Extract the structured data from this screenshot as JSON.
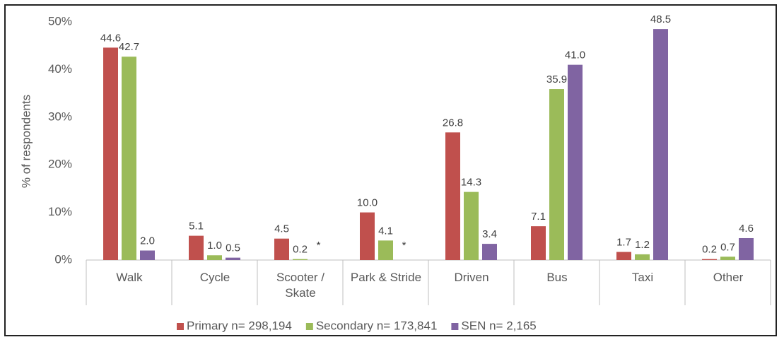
{
  "chart_data": {
    "type": "bar",
    "y_label": "% of respondents",
    "categories": [
      "Walk",
      "Cycle",
      "Scooter / Skate",
      "Park & Stride",
      "Driven",
      "Bus",
      "Taxi",
      "Other"
    ],
    "series": [
      {
        "name": "Primary n= 298,194",
        "color": "#c0504d",
        "values": [
          44.6,
          5.1,
          4.5,
          10.0,
          26.8,
          7.1,
          1.7,
          0.2
        ],
        "value_labels": [
          "44.6",
          "5.1",
          "4.5",
          "10.0",
          "26.8",
          "7.1",
          "1.7",
          "0.2"
        ]
      },
      {
        "name": "Secondary n= 173,841",
        "color": "#9bbb59",
        "values": [
          42.7,
          1.0,
          0.2,
          4.1,
          14.3,
          35.9,
          1.2,
          0.7
        ],
        "value_labels": [
          "42.7",
          "1.0",
          "0.2",
          "4.1",
          "14.3",
          "35.9",
          "1.2",
          "0.7"
        ]
      },
      {
        "name": "SEN n= 2,165",
        "color": "#8064a2",
        "values": [
          2.0,
          0.5,
          null,
          null,
          3.4,
          41.0,
          48.5,
          4.6
        ],
        "value_labels": [
          "2.0",
          "0.5",
          "*",
          "*",
          "3.4",
          "41.0",
          "48.5",
          "4.6"
        ]
      }
    ],
    "ylim": [
      0,
      50
    ],
    "yticks": [
      {
        "value": 0,
        "label": "0%"
      },
      {
        "value": 10,
        "label": "10%"
      },
      {
        "value": 20,
        "label": "20%"
      },
      {
        "value": 30,
        "label": "30%"
      },
      {
        "value": 40,
        "label": "40%"
      },
      {
        "value": 50,
        "label": "50%"
      }
    ],
    "grid": false,
    "legend": "bottom"
  }
}
